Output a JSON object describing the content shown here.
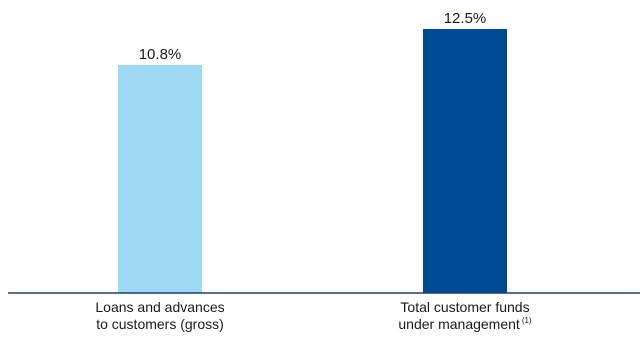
{
  "chart_data": {
    "type": "bar",
    "categories": [
      {
        "lines": [
          "Loans and advances",
          "to customers (gross)"
        ],
        "superscript": ""
      },
      {
        "lines": [
          "Total customer funds",
          "under management"
        ],
        "superscript": "(1)"
      }
    ],
    "values": [
      10.8,
      12.5
    ],
    "value_labels": [
      "10.8%",
      "12.5%"
    ],
    "unit": "%",
    "ylim": [
      0,
      12.5
    ],
    "grid": false,
    "legend": "none",
    "colors": [
      "#9dd9f3",
      "#004a94"
    ],
    "axis_color": "#1f3e6b"
  }
}
